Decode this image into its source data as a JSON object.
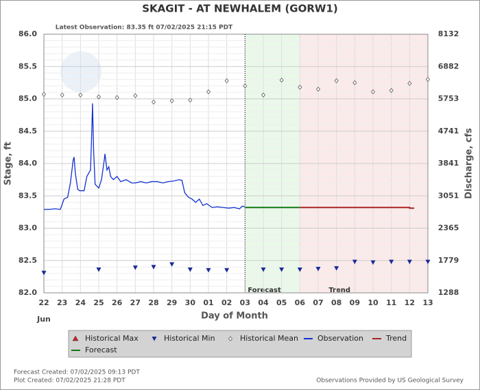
{
  "chart_data": {
    "type": "line",
    "title": "SKAGIT - AT NEWHALEM  (GORW1)",
    "subtitle": "Latest Observation: 83.35 ft 07/02/2025 21:15 PDT",
    "x_label": "Day of Month",
    "month_label": "Jun",
    "y_label": "Stage, ft",
    "y2_label": "Discharge, cfs",
    "xlim": [
      22,
      43
    ],
    "xticks": [
      22,
      23,
      24,
      25,
      26,
      27,
      28,
      29,
      30,
      {
        "value": 31,
        "label": "01"
      },
      {
        "value": 32,
        "label": "02"
      },
      {
        "value": 33,
        "label": "03"
      },
      {
        "value": 34,
        "label": "04"
      },
      {
        "value": 35,
        "label": "05"
      },
      {
        "value": 36,
        "label": "06"
      },
      {
        "value": 37,
        "label": "07"
      },
      {
        "value": 38,
        "label": "08"
      },
      {
        "value": 39,
        "label": "09"
      },
      {
        "value": 40,
        "label": "10"
      },
      {
        "value": 41,
        "label": "11"
      },
      {
        "value": 42,
        "label": "12"
      },
      {
        "value": 43,
        "label": "13"
      }
    ],
    "ylim": [
      82,
      86
    ],
    "yticks": [
      {
        "value": 82,
        "label": "82.0"
      },
      82.5,
      {
        "value": 83,
        "label": "83.0"
      },
      83.5,
      {
        "value": 84,
        "label": "84.0"
      },
      84.5,
      {
        "value": 85,
        "label": "85.0"
      },
      85.5,
      {
        "value": 86,
        "label": "86.0"
      }
    ],
    "y2ticks": [
      1288,
      1779,
      2365,
      3051,
      3841,
      4741,
      5753,
      6882,
      8132
    ],
    "grid": true,
    "observation_marker_x": 33,
    "regions": [
      {
        "name": "Forecast",
        "xlim": [
          33,
          36
        ],
        "color": "#eaf8ea"
      },
      {
        "name": "Trend",
        "xlim": [
          36,
          43
        ],
        "color": "#fbeaea"
      }
    ],
    "series": [
      {
        "name": "Historical Max",
        "color": "#cc2222",
        "marker": "triangle-up",
        "x": [],
        "values": []
      },
      {
        "name": "Historical Min",
        "color": "#1a2a9a",
        "marker": "triangle-down",
        "x": [
          22,
          25,
          27,
          28,
          29,
          30,
          31,
          32,
          34,
          35,
          36,
          37,
          38,
          39,
          40,
          41,
          42,
          43
        ],
        "values": [
          82.31,
          82.36,
          82.39,
          82.4,
          82.44,
          82.36,
          82.35,
          82.35,
          82.36,
          82.36,
          82.36,
          82.37,
          82.38,
          82.48,
          82.47,
          82.48,
          82.48,
          82.48
        ]
      },
      {
        "name": "Historical Mean",
        "color": "#555555",
        "marker": "diamond",
        "x": [
          22,
          23,
          24,
          25,
          26,
          27,
          28,
          29,
          30,
          31,
          32,
          33,
          34,
          35,
          36,
          37,
          38,
          39,
          40,
          41,
          42,
          43
        ],
        "values": [
          85.07,
          85.06,
          85.06,
          85.03,
          85.02,
          85.05,
          84.95,
          84.97,
          84.98,
          85.11,
          85.28,
          85.2,
          85.06,
          85.29,
          85.18,
          85.15,
          85.28,
          85.25,
          85.11,
          85.13,
          85.24,
          85.3
        ]
      },
      {
        "name": "Observation",
        "color": "#1030d0",
        "marker": null,
        "x": [
          22,
          22.3,
          22.6,
          22.9,
          23.1,
          23.3,
          23.45,
          23.6,
          23.65,
          23.72,
          23.85,
          23.95,
          24.2,
          24.35,
          24.45,
          24.55,
          24.62,
          24.66,
          24.72,
          24.8,
          25.0,
          25.15,
          25.3,
          25.34,
          25.45,
          25.55,
          25.65,
          25.8,
          26.0,
          26.2,
          26.5,
          26.8,
          27.0,
          27.3,
          27.6,
          27.9,
          28.2,
          28.5,
          28.8,
          29.1,
          29.4,
          29.55,
          29.7,
          29.9,
          30.1,
          30.3,
          30.5,
          30.7,
          30.9,
          31.2,
          31.5,
          31.8,
          32.1,
          32.4,
          32.7,
          32.85,
          33.0
        ],
        "values": [
          83.29,
          83.29,
          83.3,
          83.29,
          83.45,
          83.48,
          83.7,
          84.05,
          84.1,
          83.85,
          83.6,
          83.58,
          83.58,
          83.8,
          83.85,
          83.9,
          84.5,
          84.93,
          84.2,
          83.68,
          83.62,
          83.75,
          84.05,
          84.15,
          83.9,
          83.95,
          83.8,
          83.75,
          83.8,
          83.72,
          83.75,
          83.7,
          83.7,
          83.72,
          83.7,
          83.72,
          83.72,
          83.7,
          83.72,
          83.73,
          83.75,
          83.74,
          83.55,
          83.48,
          83.45,
          83.4,
          83.45,
          83.35,
          83.38,
          83.32,
          83.33,
          83.32,
          83.31,
          83.32,
          83.3,
          83.34,
          83.33
        ]
      },
      {
        "name": "Trend",
        "color": "#aa2222",
        "marker": null,
        "x": [
          36,
          42,
          42,
          42.25
        ],
        "values": [
          83.32,
          83.32,
          83.31,
          83.31
        ]
      },
      {
        "name": "Forecast",
        "color": "#117711",
        "marker": null,
        "x": [
          33,
          36
        ],
        "values": [
          83.32,
          83.32
        ]
      }
    ],
    "footer_left": [
      "Forecast Created: 07/02/2025 09:13 PDT",
      "Plot Created: 07/02/2025 21:28 PDT"
    ],
    "footer_right": "Observations Provided by US Geological Survey"
  }
}
